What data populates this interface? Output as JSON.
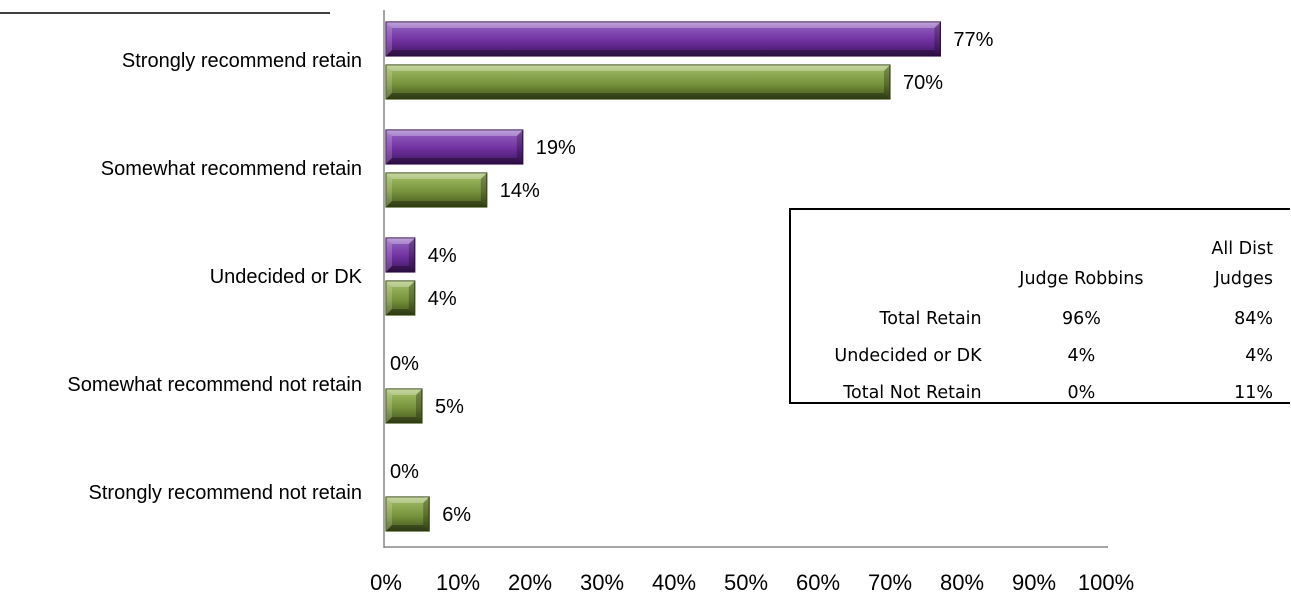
{
  "chart_data": {
    "type": "bar",
    "orientation": "horizontal",
    "categories": [
      "Strongly recommend retain",
      "Somewhat recommend retain",
      "Undecided or DK",
      "Somewhat recommend not retain",
      "Strongly recommend not retain"
    ],
    "series": [
      {
        "values": [
          77,
          19,
          4,
          0,
          0
        ],
        "labels": [
          "77%",
          "19%",
          "4%",
          "0%",
          "0%"
        ],
        "color": "#7030a0"
      },
      {
        "values": [
          70,
          14,
          4,
          5,
          6
        ],
        "labels": [
          "70%",
          "14%",
          "4%",
          "5%",
          "6%"
        ],
        "color": "#77933c"
      }
    ],
    "xlim": [
      0,
      100
    ],
    "x_ticks": [
      "0%",
      "10%",
      "20%",
      "30%",
      "40%",
      "50%",
      "60%",
      "70%",
      "80%",
      "90%",
      "100%"
    ],
    "grid": false,
    "legend": "none"
  },
  "summary_table": {
    "headers": [
      "",
      "Judge Robbins",
      "All Dist Judges"
    ],
    "rows": [
      {
        "label": "Total Retain",
        "a": "96%",
        "b": "84%"
      },
      {
        "label": "Undecided or DK",
        "a": "4%",
        "b": "4%"
      },
      {
        "label": "Total Not Retain",
        "a": "0%",
        "b": "11%"
      }
    ]
  },
  "colors": {
    "series_1": "#7030a0",
    "series_2": "#77933c"
  }
}
